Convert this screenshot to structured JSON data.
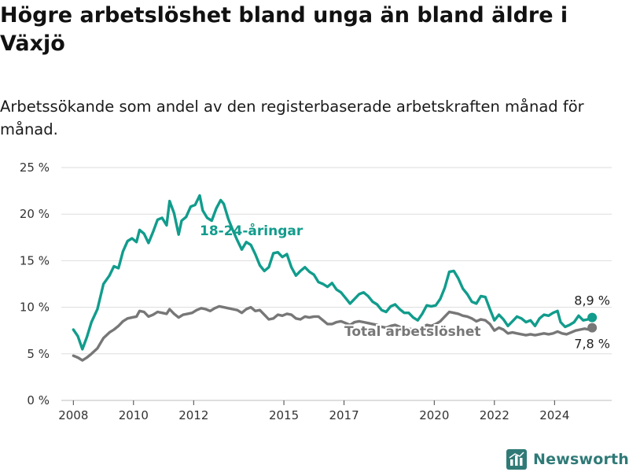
{
  "title": "Högre arbetslöshet bland unga än bland äldre i Växjö",
  "subtitle": "Arbetssökande som andel av den registerbaserade arbetskraften månad för månad.",
  "logo": {
    "text": "Newsworthy",
    "icon": "bar-chart-logo-icon",
    "color": "#2f7a77"
  },
  "chart_data": {
    "type": "line",
    "title": "Högre arbetslöshet bland unga än bland äldre i Växjö",
    "subtitle": "Arbetssökande som andel av den registerbaserade arbetskraften månad för månad.",
    "ylim": [
      0,
      25
    ],
    "yticks": [
      0,
      5,
      10,
      15,
      20,
      25
    ],
    "ytick_labels": [
      "0 %",
      "5 %",
      "10 %",
      "15 %",
      "20 %",
      "25 %"
    ],
    "xlim": [
      2007.6,
      2025.9
    ],
    "xticks": [
      2008,
      2010,
      2012,
      2015,
      2017,
      2020,
      2022,
      2024
    ],
    "xtick_labels": [
      "2008",
      "2010",
      "2012",
      "2015",
      "2017",
      "2020",
      "2022",
      "2024"
    ],
    "grid": "horizontal",
    "legend": "none (direct labels)",
    "series": [
      {
        "name": "18-24-åringar",
        "color": "#119c8c",
        "points": [
          [
            2008.0,
            7.6
          ],
          [
            2008.15,
            6.9
          ],
          [
            2008.3,
            5.5
          ],
          [
            2008.45,
            6.8
          ],
          [
            2008.6,
            8.4
          ],
          [
            2008.8,
            9.8
          ],
          [
            2009.0,
            12.5
          ],
          [
            2009.2,
            13.4
          ],
          [
            2009.35,
            14.4
          ],
          [
            2009.5,
            14.2
          ],
          [
            2009.65,
            16.0
          ],
          [
            2009.8,
            17.1
          ],
          [
            2009.95,
            17.4
          ],
          [
            2010.1,
            17.0
          ],
          [
            2010.2,
            18.3
          ],
          [
            2010.35,
            17.9
          ],
          [
            2010.5,
            16.9
          ],
          [
            2010.65,
            18.1
          ],
          [
            2010.8,
            19.4
          ],
          [
            2010.95,
            19.6
          ],
          [
            2011.1,
            18.8
          ],
          [
            2011.2,
            21.4
          ],
          [
            2011.35,
            20.1
          ],
          [
            2011.5,
            17.8
          ],
          [
            2011.6,
            19.3
          ],
          [
            2011.75,
            19.7
          ],
          [
            2011.9,
            20.8
          ],
          [
            2012.05,
            21.0
          ],
          [
            2012.2,
            22.0
          ],
          [
            2012.3,
            20.4
          ],
          [
            2012.45,
            19.6
          ],
          [
            2012.6,
            19.3
          ],
          [
            2012.75,
            20.6
          ],
          [
            2012.9,
            21.5
          ],
          [
            2013.0,
            21.1
          ],
          [
            2013.15,
            19.5
          ],
          [
            2013.3,
            18.3
          ],
          [
            2013.45,
            17.2
          ],
          [
            2013.6,
            16.2
          ],
          [
            2013.75,
            17.0
          ],
          [
            2013.9,
            16.7
          ],
          [
            2014.05,
            15.7
          ],
          [
            2014.2,
            14.5
          ],
          [
            2014.35,
            13.9
          ],
          [
            2014.5,
            14.3
          ],
          [
            2014.65,
            15.8
          ],
          [
            2014.8,
            15.9
          ],
          [
            2014.95,
            15.4
          ],
          [
            2015.1,
            15.7
          ],
          [
            2015.25,
            14.3
          ],
          [
            2015.4,
            13.4
          ],
          [
            2015.55,
            13.9
          ],
          [
            2015.7,
            14.3
          ],
          [
            2015.85,
            13.8
          ],
          [
            2016.0,
            13.5
          ],
          [
            2016.15,
            12.7
          ],
          [
            2016.3,
            12.5
          ],
          [
            2016.45,
            12.2
          ],
          [
            2016.6,
            12.6
          ],
          [
            2016.75,
            11.9
          ],
          [
            2016.9,
            11.6
          ],
          [
            2017.05,
            11.0
          ],
          [
            2017.2,
            10.4
          ],
          [
            2017.35,
            10.9
          ],
          [
            2017.5,
            11.4
          ],
          [
            2017.65,
            11.6
          ],
          [
            2017.8,
            11.2
          ],
          [
            2017.95,
            10.6
          ],
          [
            2018.1,
            10.3
          ],
          [
            2018.25,
            9.7
          ],
          [
            2018.4,
            9.5
          ],
          [
            2018.55,
            10.1
          ],
          [
            2018.7,
            10.3
          ],
          [
            2018.85,
            9.8
          ],
          [
            2019.0,
            9.4
          ],
          [
            2019.15,
            9.4
          ],
          [
            2019.3,
            8.9
          ],
          [
            2019.45,
            8.6
          ],
          [
            2019.6,
            9.3
          ],
          [
            2019.75,
            10.2
          ],
          [
            2019.9,
            10.1
          ],
          [
            2020.05,
            10.2
          ],
          [
            2020.2,
            10.9
          ],
          [
            2020.35,
            12.1
          ],
          [
            2020.5,
            13.8
          ],
          [
            2020.65,
            13.9
          ],
          [
            2020.8,
            13.1
          ],
          [
            2020.95,
            12.0
          ],
          [
            2021.1,
            11.4
          ],
          [
            2021.25,
            10.6
          ],
          [
            2021.4,
            10.4
          ],
          [
            2021.55,
            11.2
          ],
          [
            2021.7,
            11.1
          ],
          [
            2021.85,
            9.8
          ],
          [
            2022.0,
            8.6
          ],
          [
            2022.15,
            9.2
          ],
          [
            2022.3,
            8.7
          ],
          [
            2022.45,
            8.0
          ],
          [
            2022.6,
            8.5
          ],
          [
            2022.75,
            9.0
          ],
          [
            2022.9,
            8.8
          ],
          [
            2023.05,
            8.4
          ],
          [
            2023.2,
            8.6
          ],
          [
            2023.35,
            8.0
          ],
          [
            2023.5,
            8.8
          ],
          [
            2023.65,
            9.2
          ],
          [
            2023.8,
            9.1
          ],
          [
            2023.95,
            9.4
          ],
          [
            2024.1,
            9.6
          ],
          [
            2024.2,
            8.4
          ],
          [
            2024.35,
            7.9
          ],
          [
            2024.5,
            8.1
          ],
          [
            2024.65,
            8.4
          ],
          [
            2024.8,
            9.1
          ],
          [
            2024.95,
            8.6
          ],
          [
            2025.1,
            8.7
          ],
          [
            2025.25,
            8.9
          ]
        ],
        "end_label": "8,9 %"
      },
      {
        "name": "Total arbetslöshet",
        "color": "#777777",
        "points": [
          [
            2008.0,
            4.8
          ],
          [
            2008.15,
            4.6
          ],
          [
            2008.3,
            4.3
          ],
          [
            2008.45,
            4.6
          ],
          [
            2008.6,
            5.0
          ],
          [
            2008.8,
            5.6
          ],
          [
            2009.0,
            6.7
          ],
          [
            2009.2,
            7.3
          ],
          [
            2009.35,
            7.6
          ],
          [
            2009.5,
            8.0
          ],
          [
            2009.65,
            8.5
          ],
          [
            2009.8,
            8.8
          ],
          [
            2009.95,
            8.9
          ],
          [
            2010.1,
            9.0
          ],
          [
            2010.2,
            9.6
          ],
          [
            2010.35,
            9.5
          ],
          [
            2010.5,
            9.0
          ],
          [
            2010.65,
            9.2
          ],
          [
            2010.8,
            9.5
          ],
          [
            2010.95,
            9.4
          ],
          [
            2011.1,
            9.3
          ],
          [
            2011.2,
            9.8
          ],
          [
            2011.35,
            9.3
          ],
          [
            2011.5,
            8.9
          ],
          [
            2011.65,
            9.2
          ],
          [
            2011.8,
            9.3
          ],
          [
            2011.95,
            9.4
          ],
          [
            2012.1,
            9.7
          ],
          [
            2012.25,
            9.9
          ],
          [
            2012.4,
            9.8
          ],
          [
            2012.55,
            9.6
          ],
          [
            2012.7,
            9.9
          ],
          [
            2012.85,
            10.1
          ],
          [
            2013.0,
            10.0
          ],
          [
            2013.15,
            9.9
          ],
          [
            2013.3,
            9.8
          ],
          [
            2013.45,
            9.7
          ],
          [
            2013.6,
            9.4
          ],
          [
            2013.75,
            9.8
          ],
          [
            2013.9,
            10.0
          ],
          [
            2014.05,
            9.6
          ],
          [
            2014.2,
            9.7
          ],
          [
            2014.35,
            9.2
          ],
          [
            2014.5,
            8.7
          ],
          [
            2014.65,
            8.8
          ],
          [
            2014.8,
            9.2
          ],
          [
            2014.95,
            9.1
          ],
          [
            2015.1,
            9.3
          ],
          [
            2015.25,
            9.2
          ],
          [
            2015.4,
            8.8
          ],
          [
            2015.55,
            8.7
          ],
          [
            2015.7,
            9.0
          ],
          [
            2015.85,
            8.9
          ],
          [
            2016.0,
            9.0
          ],
          [
            2016.15,
            9.0
          ],
          [
            2016.3,
            8.6
          ],
          [
            2016.45,
            8.2
          ],
          [
            2016.6,
            8.2
          ],
          [
            2016.75,
            8.4
          ],
          [
            2016.9,
            8.5
          ],
          [
            2017.05,
            8.3
          ],
          [
            2017.2,
            8.1
          ],
          [
            2017.35,
            8.4
          ],
          [
            2017.5,
            8.5
          ],
          [
            2017.65,
            8.4
          ],
          [
            2017.8,
            8.3
          ],
          [
            2017.95,
            8.2
          ],
          [
            2018.1,
            8.1
          ],
          [
            2018.25,
            7.9
          ],
          [
            2018.4,
            7.8
          ],
          [
            2018.55,
            8.0
          ],
          [
            2018.7,
            8.1
          ],
          [
            2018.85,
            7.9
          ],
          [
            2019.0,
            7.8
          ],
          [
            2019.15,
            7.7
          ],
          [
            2019.3,
            7.6
          ],
          [
            2019.45,
            7.5
          ],
          [
            2019.6,
            7.8
          ],
          [
            2019.75,
            8.1
          ],
          [
            2019.9,
            8.0
          ],
          [
            2020.05,
            8.2
          ],
          [
            2020.2,
            8.5
          ],
          [
            2020.35,
            9.0
          ],
          [
            2020.5,
            9.5
          ],
          [
            2020.65,
            9.4
          ],
          [
            2020.8,
            9.3
          ],
          [
            2020.95,
            9.1
          ],
          [
            2021.1,
            9.0
          ],
          [
            2021.25,
            8.8
          ],
          [
            2021.4,
            8.5
          ],
          [
            2021.55,
            8.7
          ],
          [
            2021.7,
            8.6
          ],
          [
            2021.85,
            8.2
          ],
          [
            2022.0,
            7.5
          ],
          [
            2022.15,
            7.8
          ],
          [
            2022.3,
            7.6
          ],
          [
            2022.45,
            7.2
          ],
          [
            2022.6,
            7.3
          ],
          [
            2022.75,
            7.2
          ],
          [
            2022.9,
            7.1
          ],
          [
            2023.05,
            7.0
          ],
          [
            2023.2,
            7.1
          ],
          [
            2023.35,
            7.0
          ],
          [
            2023.5,
            7.1
          ],
          [
            2023.65,
            7.2
          ],
          [
            2023.8,
            7.1
          ],
          [
            2023.95,
            7.2
          ],
          [
            2024.1,
            7.4
          ],
          [
            2024.25,
            7.2
          ],
          [
            2024.4,
            7.1
          ],
          [
            2024.55,
            7.3
          ],
          [
            2024.7,
            7.5
          ],
          [
            2024.85,
            7.6
          ],
          [
            2025.0,
            7.7
          ],
          [
            2025.15,
            7.6
          ],
          [
            2025.25,
            7.8
          ]
        ],
        "end_label": "7,8 %"
      }
    ]
  }
}
